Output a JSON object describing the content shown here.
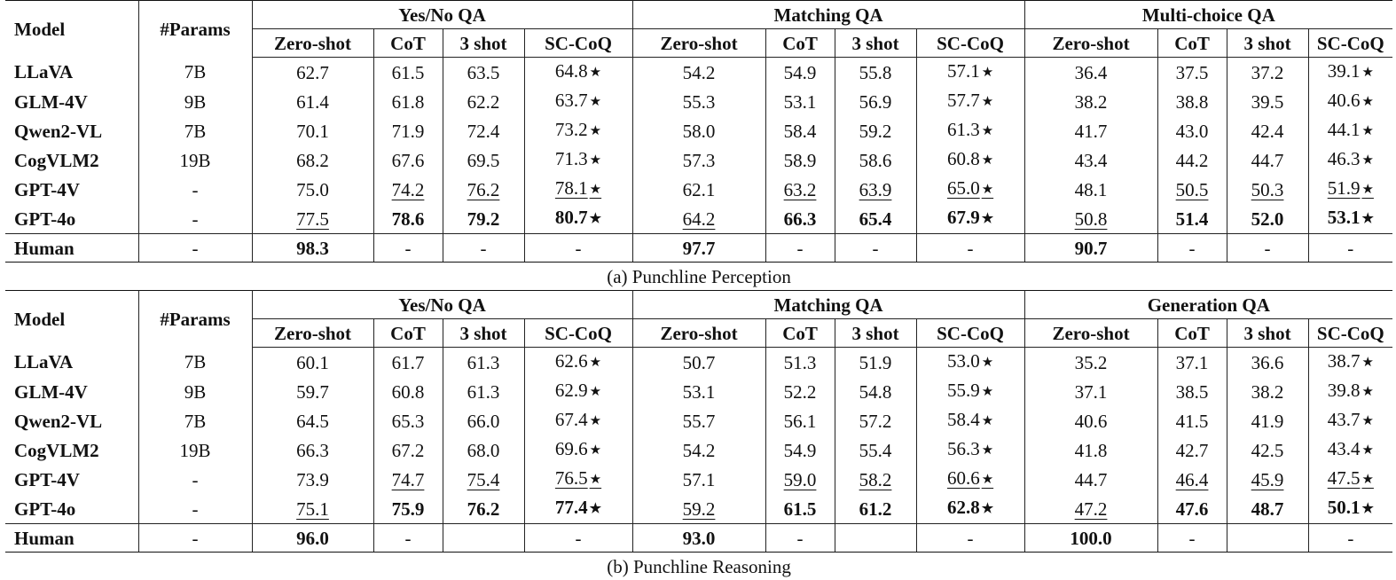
{
  "star_glyph": "★",
  "tables": [
    {
      "caption": "(a) Punchline Perception",
      "header": {
        "model": "Model",
        "params": "#Params",
        "groups": [
          "Yes/No QA",
          "Matching QA",
          "Multi-choice QA"
        ],
        "subcols": [
          "Zero-shot",
          "CoT",
          "3 shot",
          "SC-CoQ"
        ]
      },
      "rows": [
        {
          "model": "LLaVA",
          "params": "7B",
          "cells": [
            {
              "v": "62.7"
            },
            {
              "v": "61.5"
            },
            {
              "v": "63.5"
            },
            {
              "v": "64.8",
              "star": true
            },
            {
              "v": "54.2"
            },
            {
              "v": "54.9"
            },
            {
              "v": "55.8"
            },
            {
              "v": "57.1",
              "star": true
            },
            {
              "v": "36.4"
            },
            {
              "v": "37.5"
            },
            {
              "v": "37.2"
            },
            {
              "v": "39.1",
              "star": true
            }
          ]
        },
        {
          "model": "GLM-4V",
          "params": "9B",
          "cells": [
            {
              "v": "61.4"
            },
            {
              "v": "61.8"
            },
            {
              "v": "62.2"
            },
            {
              "v": "63.7",
              "star": true
            },
            {
              "v": "55.3"
            },
            {
              "v": "53.1"
            },
            {
              "v": "56.9"
            },
            {
              "v": "57.7",
              "star": true
            },
            {
              "v": "38.2"
            },
            {
              "v": "38.8"
            },
            {
              "v": "39.5"
            },
            {
              "v": "40.6",
              "star": true
            }
          ]
        },
        {
          "model": "Qwen2-VL",
          "params": "7B",
          "cells": [
            {
              "v": "70.1"
            },
            {
              "v": "71.9"
            },
            {
              "v": "72.4"
            },
            {
              "v": "73.2",
              "star": true
            },
            {
              "v": "58.0"
            },
            {
              "v": "58.4"
            },
            {
              "v": "59.2"
            },
            {
              "v": "61.3",
              "star": true
            },
            {
              "v": "41.7"
            },
            {
              "v": "43.0"
            },
            {
              "v": "42.4"
            },
            {
              "v": "44.1",
              "star": true
            }
          ]
        },
        {
          "model": "CogVLM2",
          "params": "19B",
          "cells": [
            {
              "v": "68.2"
            },
            {
              "v": "67.6"
            },
            {
              "v": "69.5"
            },
            {
              "v": "71.3",
              "star": true
            },
            {
              "v": "57.3"
            },
            {
              "v": "58.9"
            },
            {
              "v": "58.6"
            },
            {
              "v": "60.8",
              "star": true
            },
            {
              "v": "43.4"
            },
            {
              "v": "44.2"
            },
            {
              "v": "44.7"
            },
            {
              "v": "46.3",
              "star": true
            }
          ]
        },
        {
          "model": "GPT-4V",
          "params": "-",
          "cells": [
            {
              "v": "75.0"
            },
            {
              "v": "74.2",
              "ul": true
            },
            {
              "v": "76.2",
              "ul": true
            },
            {
              "v": "78.1",
              "star": true,
              "ul": true
            },
            {
              "v": "62.1"
            },
            {
              "v": "63.2",
              "ul": true
            },
            {
              "v": "63.9",
              "ul": true
            },
            {
              "v": "65.0",
              "star": true,
              "ul": true
            },
            {
              "v": "48.1"
            },
            {
              "v": "50.5",
              "ul": true
            },
            {
              "v": "50.3",
              "ul": true
            },
            {
              "v": "51.9",
              "star": true,
              "ul": true
            }
          ]
        },
        {
          "model": "GPT-4o",
          "params": "-",
          "cells": [
            {
              "v": "77.5",
              "ul": true
            },
            {
              "v": "78.6",
              "b": true
            },
            {
              "v": "79.2",
              "b": true
            },
            {
              "v": "80.7",
              "star": true,
              "b": true
            },
            {
              "v": "64.2",
              "ul": true
            },
            {
              "v": "66.3",
              "b": true
            },
            {
              "v": "65.4",
              "b": true
            },
            {
              "v": "67.9",
              "star": true,
              "b": true
            },
            {
              "v": "50.8",
              "ul": true
            },
            {
              "v": "51.4",
              "b": true
            },
            {
              "v": "52.0",
              "b": true
            },
            {
              "v": "53.1",
              "star": true,
              "b": true
            }
          ]
        }
      ],
      "human": {
        "model": "Human",
        "params": "-",
        "cells": [
          {
            "v": "98.3",
            "b": true
          },
          {
            "v": "-"
          },
          {
            "v": "-"
          },
          {
            "v": "-"
          },
          {
            "v": "97.7",
            "b": true
          },
          {
            "v": "-"
          },
          {
            "v": "-"
          },
          {
            "v": "-"
          },
          {
            "v": "90.7",
            "b": true
          },
          {
            "v": "-"
          },
          {
            "v": "-"
          },
          {
            "v": "-"
          }
        ]
      }
    },
    {
      "caption": "(b) Punchline Reasoning",
      "header": {
        "model": "Model",
        "params": "#Params",
        "groups": [
          "Yes/No QA",
          "Matching QA",
          "Generation QA"
        ],
        "subcols": [
          "Zero-shot",
          "CoT",
          "3 shot",
          "SC-CoQ"
        ]
      },
      "rows": [
        {
          "model": "LLaVA",
          "params": "7B",
          "cells": [
            {
              "v": "60.1"
            },
            {
              "v": "61.7"
            },
            {
              "v": "61.3"
            },
            {
              "v": "62.6",
              "star": true
            },
            {
              "v": "50.7"
            },
            {
              "v": "51.3"
            },
            {
              "v": "51.9"
            },
            {
              "v": "53.0",
              "star": true
            },
            {
              "v": "35.2"
            },
            {
              "v": "37.1"
            },
            {
              "v": "36.6"
            },
            {
              "v": "38.7",
              "star": true
            }
          ]
        },
        {
          "model": "GLM-4V",
          "params": "9B",
          "cells": [
            {
              "v": "59.7"
            },
            {
              "v": "60.8"
            },
            {
              "v": "61.3"
            },
            {
              "v": "62.9",
              "star": true
            },
            {
              "v": "53.1"
            },
            {
              "v": "52.2"
            },
            {
              "v": "54.8"
            },
            {
              "v": "55.9",
              "star": true
            },
            {
              "v": "37.1"
            },
            {
              "v": "38.5"
            },
            {
              "v": "38.2"
            },
            {
              "v": "39.8",
              "star": true
            }
          ]
        },
        {
          "model": "Qwen2-VL",
          "params": "7B",
          "cells": [
            {
              "v": "64.5"
            },
            {
              "v": "65.3"
            },
            {
              "v": "66.0"
            },
            {
              "v": "67.4",
              "star": true
            },
            {
              "v": "55.7"
            },
            {
              "v": "56.1"
            },
            {
              "v": "57.2"
            },
            {
              "v": "58.4",
              "star": true
            },
            {
              "v": "40.6"
            },
            {
              "v": "41.5"
            },
            {
              "v": "41.9"
            },
            {
              "v": "43.7",
              "star": true
            }
          ]
        },
        {
          "model": "CogVLM2",
          "params": "19B",
          "cells": [
            {
              "v": "66.3"
            },
            {
              "v": "67.2"
            },
            {
              "v": "68.0"
            },
            {
              "v": "69.6",
              "star": true
            },
            {
              "v": "54.2"
            },
            {
              "v": "54.9"
            },
            {
              "v": "55.4"
            },
            {
              "v": "56.3",
              "star": true
            },
            {
              "v": "41.8"
            },
            {
              "v": "42.7"
            },
            {
              "v": "42.5"
            },
            {
              "v": "43.4",
              "star": true
            }
          ]
        },
        {
          "model": "GPT-4V",
          "params": "-",
          "cells": [
            {
              "v": "73.9"
            },
            {
              "v": "74.7",
              "ul": true
            },
            {
              "v": "75.4",
              "ul": true
            },
            {
              "v": "76.5",
              "star": true,
              "ul": true
            },
            {
              "v": "57.1"
            },
            {
              "v": "59.0",
              "ul": true
            },
            {
              "v": "58.2",
              "ul": true
            },
            {
              "v": "60.6",
              "star": true,
              "ul": true
            },
            {
              "v": "44.7"
            },
            {
              "v": "46.4",
              "ul": true
            },
            {
              "v": "45.9",
              "ul": true
            },
            {
              "v": "47.5",
              "star": true,
              "ul": true
            }
          ]
        },
        {
          "model": "GPT-4o",
          "params": "-",
          "cells": [
            {
              "v": "75.1",
              "ul": true
            },
            {
              "v": "75.9",
              "b": true
            },
            {
              "v": "76.2",
              "b": true
            },
            {
              "v": "77.4",
              "star": true,
              "b": true
            },
            {
              "v": "59.2",
              "ul": true
            },
            {
              "v": "61.5",
              "b": true
            },
            {
              "v": "61.2",
              "b": true
            },
            {
              "v": "62.8",
              "star": true,
              "b": true
            },
            {
              "v": "47.2",
              "ul": true
            },
            {
              "v": "47.6",
              "b": true
            },
            {
              "v": "48.7",
              "b": true
            },
            {
              "v": "50.1",
              "star": true,
              "b": true
            }
          ]
        }
      ],
      "human": {
        "model": "Human",
        "params": "-",
        "cells": [
          {
            "v": "96.0",
            "b": true
          },
          {
            "v": "-"
          },
          {
            "v": ""
          },
          {
            "v": "-"
          },
          {
            "v": "93.0",
            "b": true
          },
          {
            "v": "-"
          },
          {
            "v": ""
          },
          {
            "v": "-"
          },
          {
            "v": "100.0",
            "b": true
          },
          {
            "v": "-"
          },
          {
            "v": ""
          },
          {
            "v": "-"
          }
        ]
      }
    }
  ]
}
